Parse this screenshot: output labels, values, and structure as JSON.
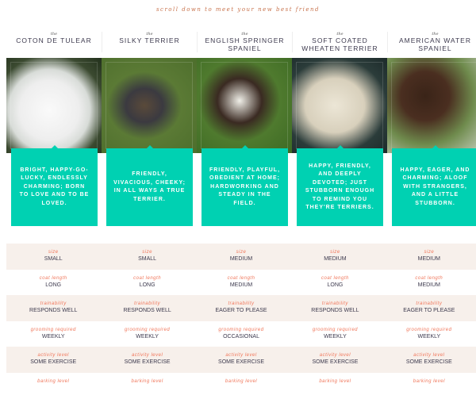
{
  "tagline": "scroll down to meet your new best friend",
  "the": "the",
  "breeds": [
    {
      "name": "COTON DE TULEAR",
      "desc": "BRIGHT, HAPPY-GO-LUCKY, ENDLESSLY CHARMING; BORN TO LOVE AND TO BE LOVED.",
      "size": "SMALL",
      "coat": "LONG",
      "train": "RESPONDS WELL",
      "groom": "WEEKLY",
      "activity": "SOME EXERCISE"
    },
    {
      "name": "SILKY TERRIER",
      "desc": "FRIENDLY, VIVACIOUS, CHEEKY; IN ALL WAYS A TRUE TERRIER.",
      "size": "SMALL",
      "coat": "LONG",
      "train": "RESPONDS WELL",
      "groom": "WEEKLY",
      "activity": "SOME EXERCISE"
    },
    {
      "name": "ENGLISH SPRINGER SPANIEL",
      "desc": "FRIENDLY, PLAYFUL, OBEDIENT AT HOME; HARDWORKING AND STEADY IN THE FIELD.",
      "size": "MEDIUM",
      "coat": "MEDIUM",
      "train": "EAGER TO PLEASE",
      "groom": "OCCASIONAL",
      "activity": "SOME EXERCISE"
    },
    {
      "name": "SOFT COATED WHEATEN TERRIER",
      "desc": "HAPPY, FRIENDLY, AND DEEPLY DEVOTED; JUST STUBBORN ENOUGH TO REMIND YOU THEY'RE TERRIERS.",
      "size": "MEDIUM",
      "coat": "LONG",
      "train": "RESPONDS WELL",
      "groom": "WEEKLY",
      "activity": "SOME EXERCISE"
    },
    {
      "name": "AMERICAN WATER SPANIEL",
      "desc": "HAPPY, EAGER, AND CHARMING; ALOOF WITH STRANGERS, AND A LITTLE STUBBORN.",
      "size": "MEDIUM",
      "coat": "MEDIUM",
      "train": "EAGER TO PLEASE",
      "groom": "WEEKLY",
      "activity": "SOME EXERCISE"
    }
  ],
  "labels": {
    "size": "size",
    "coat": "coat length",
    "train": "trainability",
    "groom": "grooming required",
    "activity": "activity level",
    "bark": "barking level"
  },
  "colors": {
    "accent": "#00d1b2",
    "label": "#f0765a",
    "tagline": "#c8734d",
    "row_shade": "#f7f0eb"
  }
}
